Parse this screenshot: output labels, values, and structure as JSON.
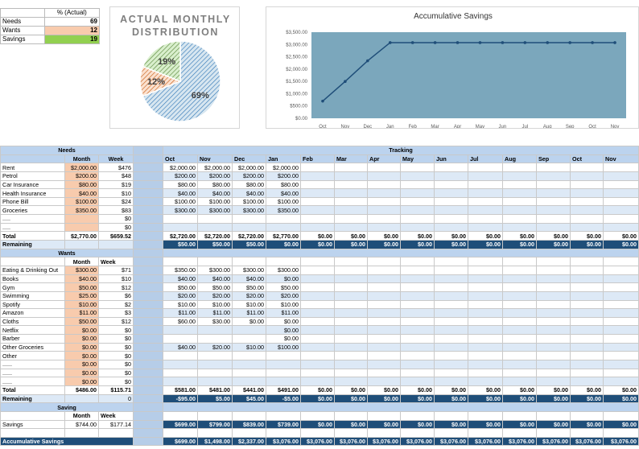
{
  "summary": {
    "header": "% (Actual)",
    "rows": [
      {
        "label": "Needs",
        "value": "69",
        "color": "#ffffff"
      },
      {
        "label": "Wants",
        "value": "12",
        "color": "#f8cbad"
      },
      {
        "label": "Savings",
        "value": "19",
        "color": "#92d050"
      }
    ]
  },
  "pie": {
    "title_line1": "ACTUAL MONTHLY",
    "title_line2": "DISTRIBUTION",
    "slices": [
      {
        "label": "69%",
        "value": 69,
        "color": "#bcd6e6",
        "stroke": "#2e75b6"
      },
      {
        "label": "12%",
        "value": 12,
        "color": "#f8cbad",
        "stroke": "#c55a11"
      },
      {
        "label": "19%",
        "value": 19,
        "color": "#b7e1a1",
        "stroke": "#548235"
      }
    ]
  },
  "chart_data": {
    "type": "line",
    "title": "Accumulative Savings",
    "x": [
      "Oct",
      "Nov",
      "Dec",
      "Jan",
      "Feb",
      "Mar",
      "Apr",
      "May",
      "Jun",
      "Jul",
      "Aug",
      "Sep",
      "Oct",
      "Nov"
    ],
    "series": [
      {
        "values": [
          699,
          1498,
          2337,
          3076,
          3076,
          3076,
          3076,
          3076,
          3076,
          3076,
          3076,
          3076,
          3076,
          3076
        ]
      }
    ],
    "yticks": [
      "$0.00",
      "$500.00",
      "$1,000.00",
      "$1,500.00",
      "$2,000.00",
      "$2,500.00",
      "$3,000.00",
      "$3,500.00"
    ],
    "ylim": [
      0,
      3500
    ],
    "plot_bg": "#7ba7bc",
    "line_color": "#1f4e79",
    "grid": false
  },
  "tracking": {
    "title": "Tracking",
    "months": [
      "Oct",
      "Nov",
      "Dec",
      "Jan",
      "Feb",
      "Mar",
      "Apr",
      "May",
      "Jun",
      "Jul",
      "Aug",
      "Sep",
      "Oct",
      "Nov"
    ]
  },
  "needs": {
    "title": "Needs",
    "col_month": "Month",
    "col_week": "Week",
    "rows": [
      {
        "name": "Rent",
        "month": "$2,000.00",
        "week": "$476",
        "t": [
          "$2,000.00",
          "$2,000.00",
          "$2,000.00",
          "$2,000.00"
        ]
      },
      {
        "name": "Petrol",
        "month": "$200.00",
        "week": "$48",
        "t": [
          "$200.00",
          "$200.00",
          "$200.00",
          "$200.00"
        ]
      },
      {
        "name": "Car Insurance",
        "month": "$80.00",
        "week": "$19",
        "t": [
          "$80.00",
          "$80.00",
          "$80.00",
          "$80.00"
        ]
      },
      {
        "name": "Health Insurance",
        "month": "$40.00",
        "week": "$10",
        "t": [
          "$40.00",
          "$40.00",
          "$40.00",
          "$40.00"
        ]
      },
      {
        "name": "Phone Bill",
        "month": "$100.00",
        "week": "$24",
        "t": [
          "$100.00",
          "$100.00",
          "$100.00",
          "$100.00"
        ]
      },
      {
        "name": "Groceries",
        "month": "$350.00",
        "week": "$83",
        "t": [
          "$300.00",
          "$300.00",
          "$300.00",
          "$350.00"
        ]
      },
      {
        "name": ".....",
        "month": "",
        "week": "$0",
        "t": []
      },
      {
        "name": ".....",
        "month": "",
        "week": "$0",
        "t": []
      }
    ],
    "total_label": "Total",
    "total_month": "$2,770.00",
    "total_week": "$659.52",
    "total_t": [
      "$2,720.00",
      "$2,720.00",
      "$2,720.00",
      "$2,770.00",
      "$0.00",
      "$0.00",
      "$0.00",
      "$0.00",
      "$0.00",
      "$0.00",
      "$0.00",
      "$0.00",
      "$0.00",
      "$0.00"
    ],
    "remaining_label": "Remaining",
    "remaining_t": [
      "$50.00",
      "$50.00",
      "$50.00",
      "$0.00",
      "$0.00",
      "$0.00",
      "$0.00",
      "$0.00",
      "$0.00",
      "$0.00",
      "$0.00",
      "$0.00",
      "$0.00",
      "$0.00"
    ]
  },
  "wants": {
    "title": "Wants",
    "col_month": "Month",
    "col_week": "Week",
    "rows": [
      {
        "name": "Eating & Drinking Out",
        "month": "$300.00",
        "week": "$71",
        "t": [
          "$350.00",
          "$300.00",
          "$300.00",
          "$300.00"
        ]
      },
      {
        "name": "Books",
        "month": "$40.00",
        "week": "$10",
        "t": [
          "$40.00",
          "$40.00",
          "$40.00",
          "$0.00"
        ]
      },
      {
        "name": "Gym",
        "month": "$50.00",
        "week": "$12",
        "t": [
          "$50.00",
          "$50.00",
          "$50.00",
          "$50.00"
        ]
      },
      {
        "name": "Swimming",
        "month": "$25.00",
        "week": "$6",
        "t": [
          "$20.00",
          "$20.00",
          "$20.00",
          "$20.00"
        ]
      },
      {
        "name": "Spotify",
        "month": "$10.00",
        "week": "$2",
        "t": [
          "$10.00",
          "$10.00",
          "$10.00",
          "$10.00"
        ]
      },
      {
        "name": "Amazon",
        "month": "$11.00",
        "week": "$3",
        "t": [
          "$11.00",
          "$11.00",
          "$11.00",
          "$11.00"
        ]
      },
      {
        "name": "Cloths",
        "month": "$50.00",
        "week": "$12",
        "t": [
          "$60.00",
          "$30.00",
          "$0.00",
          "$0.00"
        ]
      },
      {
        "name": "Netflix",
        "month": "$0.00",
        "week": "$0",
        "t": [
          "",
          "",
          "",
          "$0.00"
        ]
      },
      {
        "name": "Barber",
        "month": "$0.00",
        "week": "$0",
        "t": [
          "",
          "",
          "",
          "$0.00"
        ]
      },
      {
        "name": "Other Groceries",
        "month": "$0.00",
        "week": "$0",
        "t": [
          "$40.00",
          "$20.00",
          "$10.00",
          "$100.00"
        ]
      },
      {
        "name": "Other",
        "month": "$0.00",
        "week": "$0",
        "t": []
      },
      {
        "name": "......",
        "month": "$0.00",
        "week": "$0",
        "t": []
      },
      {
        "name": "......",
        "month": "$0.00",
        "week": "$0",
        "t": []
      },
      {
        "name": "......",
        "month": "$0.00",
        "week": "$0",
        "t": []
      }
    ],
    "total_label": "Total",
    "total_month": "$486.00",
    "total_week": "$115.71",
    "total_t": [
      "$581.00",
      "$481.00",
      "$441.00",
      "$491.00",
      "$0.00",
      "$0.00",
      "$0.00",
      "$0.00",
      "$0.00",
      "$0.00",
      "$0.00",
      "$0.00",
      "$0.00",
      "$0.00"
    ],
    "remaining_label": "Remaining",
    "remaining_week": "0",
    "remaining_t": [
      "-$95.00",
      "$5.00",
      "$45.00",
      "-$5.00",
      "$0.00",
      "$0.00",
      "$0.00",
      "$0.00",
      "$0.00",
      "$0.00",
      "$0.00",
      "$0.00",
      "$0.00",
      "$0.00"
    ]
  },
  "saving": {
    "title": "Saving",
    "col_month": "Month",
    "col_week": "Week",
    "row_label": "Savings",
    "month": "$744.00",
    "week": "$177.14",
    "t": [
      "$699.00",
      "$799.00",
      "$839.00",
      "$739.00",
      "$0.00",
      "$0.00",
      "$0.00",
      "$0.00",
      "$0.00",
      "$0.00",
      "$0.00",
      "$0.00",
      "$0.00",
      "$0.00"
    ],
    "accum_label": "Accumulative Savings",
    "accum_t": [
      "$699.00",
      "$1,498.00",
      "$2,337.00",
      "$3,076.00",
      "$3,076.00",
      "$3,076.00",
      "$3,076.00",
      "$3,076.00",
      "$3,076.00",
      "$3,076.00",
      "$3,076.00",
      "$3,076.00",
      "$3,076.00",
      "$3,076.00"
    ]
  }
}
